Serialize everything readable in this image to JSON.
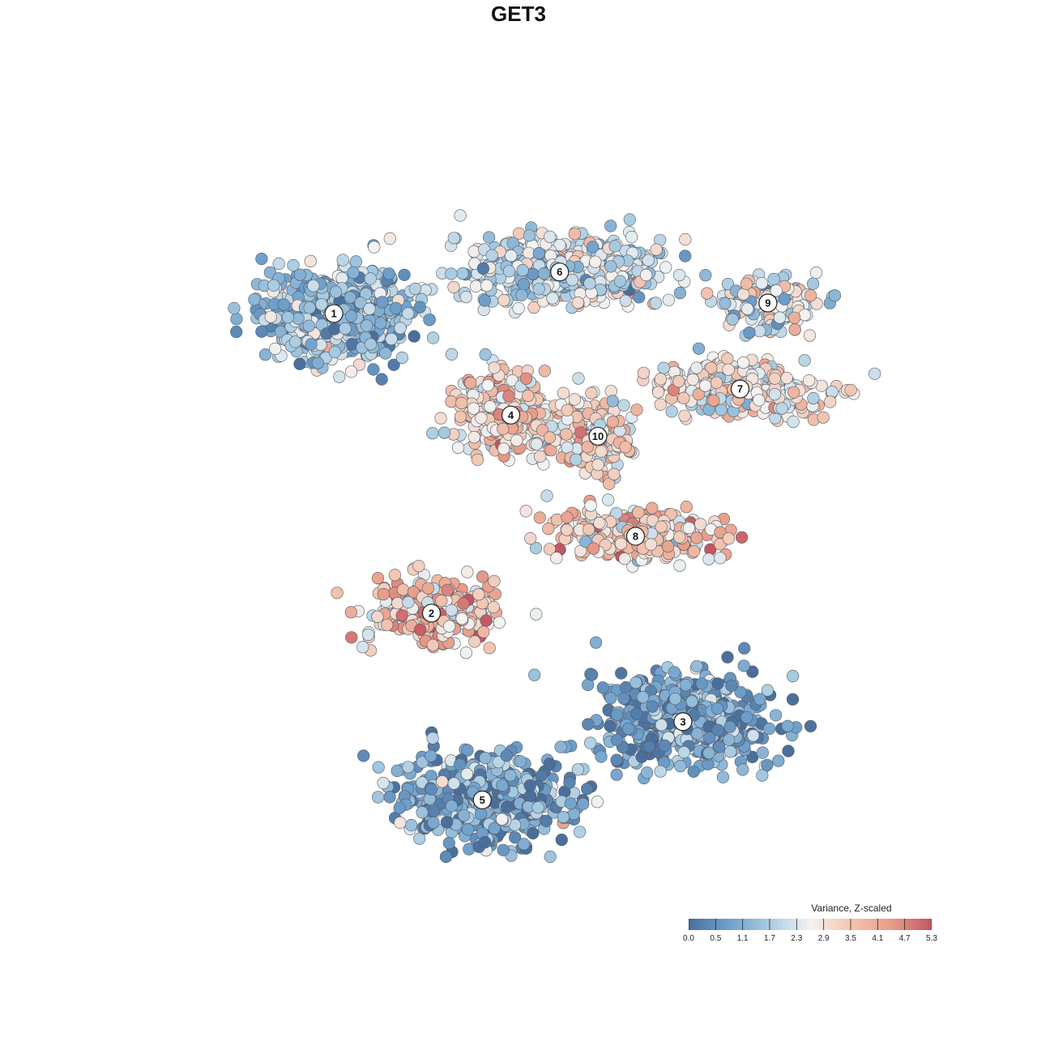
{
  "chart_data": {
    "type": "scatter",
    "title": "GET3",
    "xlabel": "",
    "ylabel": "",
    "grid": false,
    "legend_placement": "bottom-right",
    "color_scale": {
      "title": "Variance, Z-scaled",
      "min": 0.0,
      "max": 5.3,
      "ticks": [
        "0.0",
        "0.5",
        "1.1",
        "1.7",
        "2.3",
        "2.9",
        "3.5",
        "4.1",
        "4.7",
        "5.3"
      ],
      "colors": [
        "#4a6f9c",
        "#6fa0cc",
        "#a9cce2",
        "#f3f3f2",
        "#f2c5b0",
        "#e89c88",
        "#c45562"
      ]
    },
    "clusters": [
      {
        "label": "1",
        "x": -26.5,
        "y": 30.8,
        "mean_value": 1.5,
        "spread_x": 11,
        "spread_y": 7,
        "n": 620
      },
      {
        "label": "2",
        "x": -12.5,
        "y": -11.7,
        "mean_value": 3.6,
        "spread_x": 10,
        "spread_y": 5,
        "n": 300
      },
      {
        "label": "3",
        "x": 23.6,
        "y": -27.1,
        "mean_value": 0.9,
        "spread_x": 14,
        "spread_y": 7,
        "n": 520
      },
      {
        "label": "4",
        "x": -1.1,
        "y": 16.4,
        "mean_value": 3.3,
        "spread_x": 8,
        "spread_y": 6,
        "n": 320
      },
      {
        "label": "5",
        "x": -5.2,
        "y": -38.2,
        "mean_value": 1.0,
        "spread_x": 13,
        "spread_y": 7,
        "n": 520
      },
      {
        "label": "6",
        "x": 5.9,
        "y": 36.7,
        "mean_value": 2.2,
        "spread_x": 16,
        "spread_y": 5,
        "n": 560
      },
      {
        "label": "7",
        "x": 31.8,
        "y": 20.1,
        "mean_value": 2.9,
        "spread_x": 13,
        "spread_y": 4,
        "n": 300
      },
      {
        "label": "8",
        "x": 16.8,
        "y": -0.8,
        "mean_value": 3.4,
        "spread_x": 12,
        "spread_y": 4,
        "n": 300
      },
      {
        "label": "9",
        "x": 35.8,
        "y": 32.3,
        "mean_value": 2.3,
        "spread_x": 8,
        "spread_y": 4,
        "n": 170
      },
      {
        "label": "10",
        "x": 11.4,
        "y": 13.4,
        "mean_value": 3.2,
        "spread_x": 5,
        "spread_y": 6,
        "n": 160
      }
    ]
  }
}
